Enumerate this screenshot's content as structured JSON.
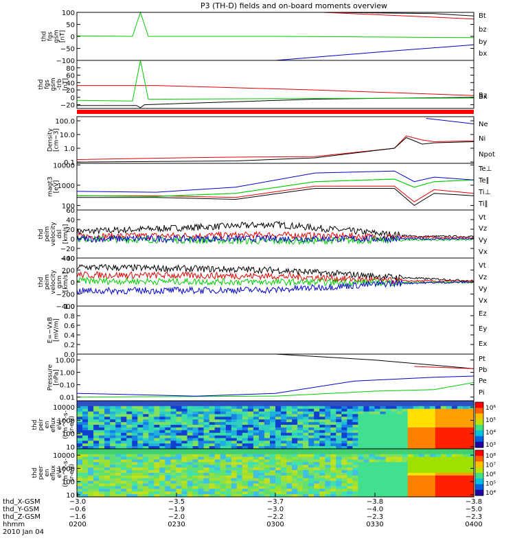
{
  "title": "P3 (TH-D) fields and on-board moments overview",
  "colors": {
    "black": "#000000",
    "red": "#e00000",
    "green": "#00cc00",
    "blue": "#0000cc",
    "bar": "#ff0000"
  },
  "chart_data": [
    {
      "type": "line",
      "ylabel": [
        "thd",
        "fgs",
        "gsm",
        "[nT]"
      ],
      "ylim": [
        -100,
        100
      ],
      "ytick_labels": [
        "100",
        "50",
        "0",
        "−50",
        "−100"
      ],
      "legend": [
        {
          "label": "Bt",
          "color": "black"
        },
        {
          "label": "bz",
          "color": "red"
        },
        {
          "label": "by",
          "color": "green"
        },
        {
          "label": "bx",
          "color": "blue"
        }
      ],
      "series": [
        {
          "name": "Bt",
          "color": "black",
          "x": [
            0.62,
            0.9,
            1.0
          ],
          "values": [
            100,
            95,
            85
          ]
        },
        {
          "name": "bz",
          "color": "red",
          "x": [
            0.62,
            0.9,
            1.0
          ],
          "values": [
            100,
            80,
            72
          ]
        },
        {
          "name": "by",
          "color": "green",
          "x": [
            0,
            0.14,
            0.16,
            0.18,
            0.5,
            1.0
          ],
          "values": [
            2,
            0,
            100,
            0,
            0,
            -5
          ]
        },
        {
          "name": "bx",
          "color": "blue",
          "x": [
            0.5,
            0.8,
            1.0
          ],
          "values": [
            -100,
            -60,
            -35
          ]
        }
      ]
    },
    {
      "type": "line",
      "ylabel": [
        "thd",
        "fgs",
        "gsm",
        "-trb",
        "[nT]"
      ],
      "ylim": [
        -30,
        100
      ],
      "ytick_labels": [
        "80",
        "60",
        "40",
        "20",
        "0",
        "−20"
      ],
      "legend": [
        {
          "label": "Bz",
          "color": "red"
        },
        {
          "label": "Bx",
          "color": "black"
        }
      ],
      "series": [
        {
          "name": "Bz",
          "color": "red",
          "x": [
            0,
            0.2,
            0.6,
            1.0
          ],
          "values": [
            32,
            32,
            20,
            5
          ]
        },
        {
          "name": "Bx",
          "color": "black",
          "x": [
            0,
            0.15,
            0.16,
            0.17,
            0.6,
            1.0
          ],
          "values": [
            -22,
            -22,
            -28,
            -20,
            -5,
            0
          ]
        },
        {
          "values": [
            -8,
            -10,
            100,
            -5,
            -3,
            -2
          ],
          "x": [
            0,
            0.14,
            0.16,
            0.18,
            0.6,
            1.0
          ],
          "color": "green"
        }
      ]
    },
    {
      "type": "line",
      "ylabel": [
        "Density",
        "[cm−3]"
      ],
      "yscale": "log",
      "ylim": [
        0.08,
        200
      ],
      "ytick_labels": [
        "100.0",
        "10.0",
        "1.0",
        "0.1"
      ],
      "legend": [
        {
          "label": "Ne",
          "color": "red"
        },
        {
          "label": "Ni",
          "color": "black"
        },
        {
          "label": "Npot",
          "color": "blue"
        }
      ],
      "series": [
        {
          "name": "Ne",
          "color": "red",
          "x": [
            0,
            0.35,
            0.6,
            0.8,
            0.83,
            0.87,
            0.9,
            1.0
          ],
          "values": [
            0.15,
            0.22,
            0.25,
            1.0,
            8.0,
            4.0,
            3.0,
            3.5
          ]
        },
        {
          "name": "Ni",
          "color": "black",
          "x": [
            0,
            0.4,
            0.6,
            0.8,
            0.83,
            0.87,
            0.9,
            1.0
          ],
          "values": [
            0.1,
            0.12,
            0.2,
            1.0,
            6.0,
            2.0,
            2.5,
            3.0
          ]
        },
        {
          "name": "Npot",
          "color": "blue",
          "x": [
            0.88,
            1.0
          ],
          "values": [
            150,
            60
          ]
        }
      ]
    },
    {
      "type": "line",
      "ylabel": [
        "magt3",
        "[eV]"
      ],
      "yscale": "log",
      "ylim": [
        60,
        12000
      ],
      "ytick_labels": [
        "10000",
        "1000",
        "100"
      ],
      "legend": [
        {
          "label": "Te⊥",
          "color": "red"
        },
        {
          "label": "Te∥",
          "color": "black"
        },
        {
          "label": "Ti⊥",
          "color": "green"
        },
        {
          "label": "Ti∥",
          "color": "green"
        }
      ],
      "series": [
        {
          "name": "Te⊥",
          "color": "red",
          "x": [
            0,
            0.2,
            0.4,
            0.6,
            0.8,
            0.85,
            0.9,
            1.0
          ],
          "values": [
            300,
            300,
            250,
            900,
            900,
            150,
            600,
            400
          ]
        },
        {
          "name": "Te∥",
          "color": "black",
          "x": [
            0,
            0.2,
            0.4,
            0.6,
            0.8,
            0.85,
            0.9,
            1.0
          ],
          "values": [
            250,
            250,
            200,
            700,
            700,
            100,
            400,
            300
          ]
        },
        {
          "name": "Ti⊥",
          "color": "green",
          "x": [
            0,
            0.2,
            0.4,
            0.6,
            0.8,
            0.85,
            0.9,
            1.0
          ],
          "values": [
            300,
            280,
            400,
            1500,
            2000,
            800,
            1500,
            1800
          ]
        },
        {
          "name": "Ti∥",
          "color": "green",
          "x": [
            0,
            0.2,
            0.4,
            0.6,
            0.8,
            0.85,
            0.9,
            1.0
          ],
          "values": [
            300,
            280,
            400,
            1500,
            2000,
            800,
            1500,
            1800
          ]
        },
        {
          "color": "blue",
          "x": [
            0,
            0.2,
            0.4,
            0.6,
            0.8,
            0.85,
            0.9,
            1.0
          ],
          "values": [
            500,
            450,
            800,
            4000,
            5000,
            1500,
            2500,
            1800
          ]
        }
      ]
    },
    {
      "type": "line",
      "ylabel": [
        "thd",
        "peim",
        "velocity",
        "dsl",
        "[km/s]"
      ],
      "ylim": [
        -40,
        60
      ],
      "ytick_labels": [
        "60",
        "40",
        "20",
        "0",
        "−20",
        "−40"
      ],
      "legend": [
        {
          "label": "Vt",
          "color": "black"
        },
        {
          "label": "Vz",
          "color": "red"
        },
        {
          "label": "Vy",
          "color": "green"
        },
        {
          "label": "Vx",
          "color": "blue"
        }
      ],
      "series": [
        {
          "name": "Vt",
          "color": "black",
          "x": [
            0,
            0.5,
            0.85,
            1.0
          ],
          "values": [
            15,
            30,
            5,
            5
          ]
        },
        {
          "name": "Vz",
          "color": "red",
          "x": [
            0,
            0.5,
            0.85,
            1.0
          ],
          "values": [
            5,
            8,
            3,
            3
          ]
        },
        {
          "name": "Vy",
          "color": "green",
          "x": [
            0,
            0.5,
            0.85,
            1.0
          ],
          "values": [
            0,
            -5,
            -2,
            -2
          ]
        },
        {
          "name": "Vx",
          "color": "blue",
          "x": [
            0,
            1.0
          ],
          "values": [
            0,
            0
          ]
        }
      ]
    },
    {
      "type": "line",
      "ylabel": [
        "thd",
        "peim",
        "velocity",
        "gsm",
        "[km/s]"
      ],
      "ylim": [
        -400,
        400
      ],
      "ytick_labels": [
        "400",
        "200",
        "0",
        "−200",
        "−400"
      ],
      "legend": [
        {
          "label": "Vt",
          "color": "black"
        },
        {
          "label": "Vz",
          "color": "red"
        },
        {
          "label": "Vy",
          "color": "green"
        },
        {
          "label": "Vx",
          "color": "blue"
        }
      ],
      "series": [
        {
          "name": "Vt",
          "color": "black",
          "x": [
            0,
            0.5,
            0.8,
            1.0
          ],
          "values": [
            250,
            200,
            80,
            20
          ]
        },
        {
          "name": "Vz",
          "color": "red",
          "x": [
            0,
            0.5,
            0.8,
            1.0
          ],
          "values": [
            120,
            100,
            20,
            10
          ]
        },
        {
          "name": "Vy",
          "color": "green",
          "x": [
            0,
            0.5,
            0.8,
            1.0
          ],
          "values": [
            20,
            0,
            -10,
            0
          ]
        },
        {
          "name": "Vx",
          "color": "blue",
          "x": [
            0,
            0.5,
            0.8,
            1.0
          ],
          "values": [
            -150,
            -130,
            -20,
            0
          ]
        }
      ]
    },
    {
      "type": "line",
      "ylabel": [
        "E=−VxB",
        "[mV/m]"
      ],
      "ylim": [
        0,
        1
      ],
      "ytick_labels": [
        "1.0",
        "0.8",
        "0.6",
        "0.4",
        "0.2",
        "0.0"
      ],
      "legend": [
        {
          "label": "Ez",
          "color": "red"
        },
        {
          "label": "Ey",
          "color": "green"
        },
        {
          "label": "Ex",
          "color": "blue"
        }
      ],
      "series": []
    },
    {
      "type": "line",
      "ylabel": [
        "Pressure",
        "[nPa]"
      ],
      "yscale": "log",
      "ylim": [
        0.005,
        30
      ],
      "ytick_labels": [
        "10.00",
        "1.00",
        "0.10",
        "0.01"
      ],
      "legend": [
        {
          "label": "Pt",
          "color": "black"
        },
        {
          "label": "Pb",
          "color": "red"
        },
        {
          "label": "Pe",
          "color": "green"
        },
        {
          "label": "Pi",
          "color": "blue"
        }
      ],
      "series": [
        {
          "name": "Pt",
          "color": "black",
          "x": [
            0.5,
            0.75,
            1.0
          ],
          "values": [
            30,
            10,
            2
          ]
        },
        {
          "name": "Pb",
          "color": "red",
          "x": [
            0.85,
            1.0
          ],
          "values": [
            3,
            2
          ]
        },
        {
          "name": "Pe",
          "color": "green",
          "x": [
            0,
            0.5,
            0.75,
            0.9,
            1.0
          ],
          "values": [
            0.01,
            0.012,
            0.03,
            0.04,
            0.15
          ]
        },
        {
          "name": "Pi",
          "color": "blue",
          "x": [
            0,
            0.3,
            0.5,
            0.7,
            0.9,
            1.0
          ],
          "values": [
            0.02,
            0.012,
            0.02,
            0.2,
            0.4,
            0.5
          ]
        }
      ]
    },
    {
      "type": "heatmap",
      "ylabel": [
        "thd",
        "peir",
        "en",
        "eflux",
        "eV/",
        "(cm^2-s-",
        "sr-eV)"
      ],
      "yscale": "log",
      "ylim": [
        7,
        30000
      ],
      "ytick_labels": [
        "10000",
        "1000",
        "100",
        "10"
      ],
      "colorbar_labels": [
        "10⁶",
        "10⁵",
        "10⁴",
        "10³"
      ],
      "colorbar_range": [
        3,
        6.5
      ]
    },
    {
      "type": "heatmap",
      "ylabel": [
        "thd",
        "peer",
        "en",
        "eflux",
        "eV/",
        "(cm^2-s-",
        "sr-eV)"
      ],
      "yscale": "log",
      "ylim": [
        7,
        30000
      ],
      "ytick_labels": [
        "10000",
        "1000",
        "100",
        "10"
      ],
      "colorbar_labels": [
        "10⁸",
        "10⁷",
        "10⁶",
        "10⁵",
        "10⁴"
      ],
      "colorbar_range": [
        4,
        8.5
      ]
    }
  ],
  "xaxis": {
    "rows": [
      {
        "label": "thd_X-GSM",
        "values": [
          "−3.0",
          "−3.5",
          "−3.7",
          "−3.8",
          "−3.8"
        ]
      },
      {
        "label": "thd_Y-GSM",
        "values": [
          "−0.6",
          "−1.9",
          "−3.0",
          "−4.0",
          "−5.0"
        ]
      },
      {
        "label": "thd_Z-GSM",
        "values": [
          "−1.6",
          "−2.0",
          "−2.2",
          "−2.3",
          "−2.3"
        ]
      },
      {
        "label": "hhmm",
        "values": [
          "0200",
          "0230",
          "0300",
          "0330",
          "0400"
        ]
      }
    ],
    "date": "2010 Jan 04"
  }
}
